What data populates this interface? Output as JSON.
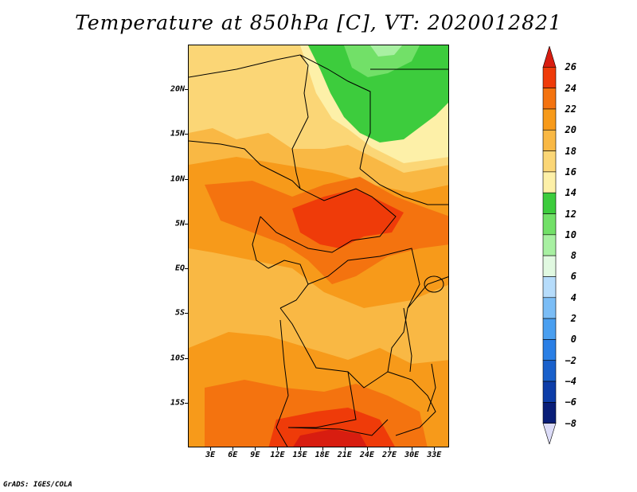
{
  "title": "Temperature at 850hPa [C], VT: 2020012821",
  "credit": "GrADS: IGES/COLA",
  "map": {
    "variable": "Temperature at 850hPa",
    "units": "C",
    "valid_time": "2020012821",
    "region": "Central Africa",
    "lon_range": [
      0,
      35
    ],
    "lat_range": [
      -20,
      25
    ]
  },
  "axes": {
    "lat_ticks": [
      {
        "label": "20N",
        "value": 20
      },
      {
        "label": "15N",
        "value": 15
      },
      {
        "label": "10N",
        "value": 10
      },
      {
        "label": "5N",
        "value": 5
      },
      {
        "label": "EQ",
        "value": 0
      },
      {
        "label": "5S",
        "value": -5
      },
      {
        "label": "10S",
        "value": -10
      },
      {
        "label": "15S",
        "value": -15
      }
    ],
    "lon_ticks": [
      {
        "label": "3E",
        "value": 3
      },
      {
        "label": "6E",
        "value": 6
      },
      {
        "label": "9E",
        "value": 9
      },
      {
        "label": "12E",
        "value": 12
      },
      {
        "label": "15E",
        "value": 15
      },
      {
        "label": "18E",
        "value": 18
      },
      {
        "label": "21E",
        "value": 21
      },
      {
        "label": "24E",
        "value": 24
      },
      {
        "label": "27E",
        "value": 27
      },
      {
        "label": "30E",
        "value": 30
      },
      {
        "label": "33E",
        "value": 33
      }
    ]
  },
  "colorbar": {
    "levels": [
      "26",
      "24",
      "22",
      "20",
      "18",
      "16",
      "14",
      "12",
      "10",
      "8",
      "6",
      "4",
      "2",
      "0",
      "−2",
      "−4",
      "−6",
      "−8"
    ],
    "colors_top_to_bottom": [
      "#d81d10",
      "#ef3b09",
      "#f4730f",
      "#f79a1a",
      "#f9b844",
      "#fbd676",
      "#fdf0a8",
      "#3dcc3d",
      "#72e068",
      "#a8f0a2",
      "#e1f9e1",
      "#b6dcfb",
      "#7bbdf6",
      "#4a9ff0",
      "#2a7fe5",
      "#1960cb",
      "#0d3da8",
      "#091e78",
      "#dcdcf8"
    ]
  }
}
